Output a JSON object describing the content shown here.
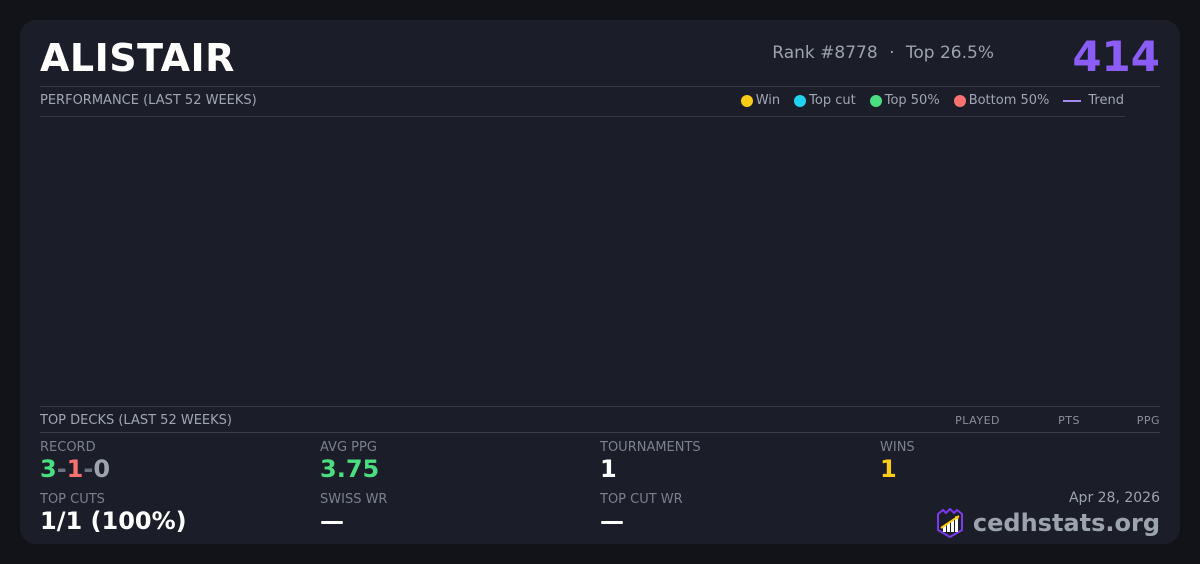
{
  "player": {
    "name": "ALISTAIR",
    "rank": "Rank #8778",
    "separator": "·",
    "top_percent": "Top 26.5%",
    "score": "414"
  },
  "performance": {
    "title": "PERFORMANCE (LAST 52 WEEKS)",
    "legend": [
      {
        "label": "Win",
        "color": "#facc15"
      },
      {
        "label": "Top cut",
        "color": "#22d3ee"
      },
      {
        "label": "Top 50%",
        "color": "#4ade80"
      },
      {
        "label": "Bottom 50%",
        "color": "#f87171"
      },
      {
        "label": "Trend",
        "color": "#a78bfa"
      }
    ]
  },
  "top_decks": {
    "title": "TOP DECKS (LAST 52 WEEKS)",
    "columns": [
      "PLAYED",
      "PTS",
      "PPG"
    ]
  },
  "stats": {
    "record": {
      "label": "RECORD",
      "wins": "3",
      "losses": "1",
      "draws": "0",
      "sep": "-"
    },
    "avg_ppg": {
      "label": "AVG PPG",
      "value": "3.75"
    },
    "tournaments": {
      "label": "TOURNAMENTS",
      "value": "1"
    },
    "wins": {
      "label": "WINS",
      "value": "1"
    },
    "top_cuts": {
      "label": "TOP CUTS",
      "value": "1/1 (100%)"
    },
    "swiss_wr": {
      "label": "SWISS WR",
      "value": "—"
    },
    "top_cut_wr": {
      "label": "TOP CUT WR",
      "value": "—"
    }
  },
  "footer": {
    "date": "Apr 28, 2026",
    "brand": "cedhstats.org",
    "logo_icon": "shield-chart-icon"
  }
}
